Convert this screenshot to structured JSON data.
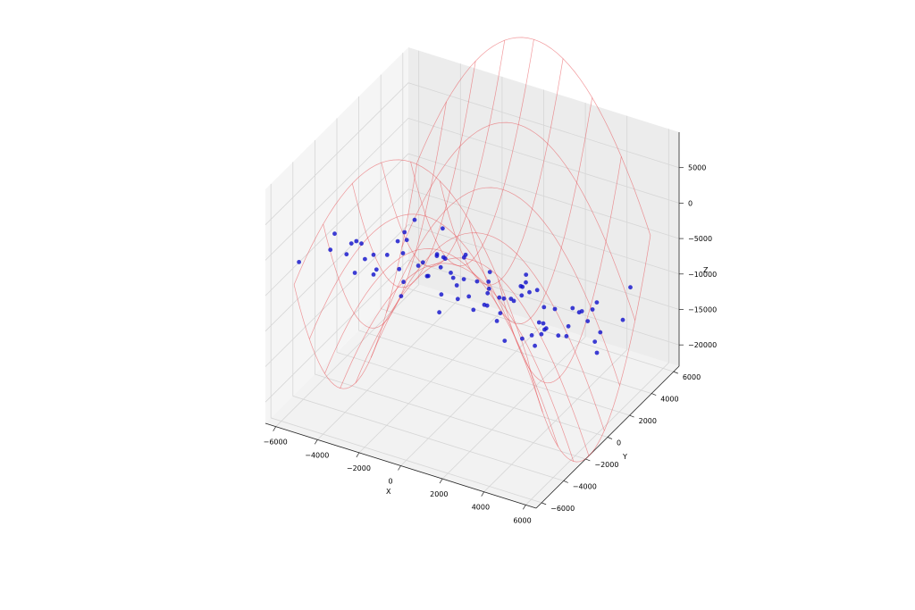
{
  "chart_data": {
    "type": "scatter",
    "title": "",
    "xlabel": "X",
    "ylabel": "Y",
    "zlabel": "Z",
    "x_ticks": [
      "−6000",
      "−4000",
      "−2000",
      "0",
      "2000",
      "4000",
      "6000"
    ],
    "y_ticks": [
      "−6000",
      "−4000",
      "−2000",
      "0",
      "2000",
      "4000",
      "6000"
    ],
    "z_ticks": [
      "−20000",
      "−15000",
      "−10000",
      "−5000",
      "0",
      "5000"
    ],
    "xlim": [
      -6500,
      6500
    ],
    "ylim": [
      -6500,
      6500
    ],
    "zlim": [
      -23000,
      10000
    ],
    "grid": true,
    "surface": {
      "kind": "wireframe",
      "color": "#e8474d",
      "x_range": [
        -5600,
        5600
      ],
      "y_range": [
        -5600,
        5600
      ],
      "steps": 9,
      "equation": "z = (y^2 - x^2) / 6000000 * 4300 - 4000"
    },
    "points": {
      "color": "#1414cc",
      "x": [
        -5520,
        -4280,
        -3580,
        -3080,
        -2310,
        -1450,
        -720,
        150,
        900,
        1820,
        2640,
        3370,
        4380,
        5120,
        -5180,
        -4560,
        -3790,
        -2680,
        -1770,
        -900,
        420,
        1370,
        2260,
        3180,
        4160,
        4870,
        -4890,
        -3450,
        -2210,
        -1010,
        180,
        1160,
        2480,
        3590,
        4510,
        -5020,
        -3990,
        -2960,
        -1760,
        -420,
        820,
        2030,
        3070,
        4100,
        5350,
        -4620,
        -3150,
        -1910,
        -610,
        620,
        1780,
        2970,
        3960,
        4830,
        -5330,
        -4380,
        -3250,
        -1850,
        -760,
        480,
        1420,
        2730,
        3880,
        5010,
        -4220,
        -2990,
        -1610,
        -280,
        1070,
        2280,
        3340,
        4690,
        -3640,
        -2470,
        -1130,
        360,
        1610,
        2920,
        4210,
        5260,
        -2700,
        -1320,
        30,
        1220,
        2540,
        3760,
        4930
      ],
      "y": [
        -5300,
        -4800,
        -3900,
        -5600,
        -4600,
        -3900,
        -5100,
        -3500,
        -4700,
        -5400,
        -3600,
        -4900,
        -3400,
        -4500,
        -2700,
        -1900,
        -2900,
        -1700,
        -2600,
        -1500,
        -2200,
        -2900,
        -1400,
        -2500,
        -1800,
        -2700,
        -500,
        -1200,
        -300,
        -900,
        100,
        -600,
        -200,
        -1100,
        200,
        800,
        1400,
        700,
        1600,
        900,
        1400,
        700,
        1700,
        800,
        1200,
        2500,
        3100,
        2300,
        3400,
        2600,
        3200,
        2200,
        3000,
        2500,
        3800,
        4300,
        3700,
        4600,
        3900,
        4500,
        3600,
        4800,
        3800,
        4200,
        5300,
        4900,
        5600,
        5100,
        4700,
        5400,
        5000,
        5500,
        -4100,
        -4300,
        -3100,
        -3300,
        -3800,
        -4000,
        -3100,
        -3500,
        1000,
        1900,
        1300,
        2100,
        1100,
        2000,
        1600
      ],
      "z": [
        -1200,
        900,
        -3100,
        2600,
        1700,
        -600,
        -1900,
        2100,
        -3300,
        4200,
        -700,
        3600,
        3200,
        3100,
        -900,
        -2600,
        -700,
        -1200,
        1200,
        -1700,
        -3800,
        -3400,
        -5200,
        -2700,
        -6200,
        -2000,
        -7600,
        -4600,
        -5900,
        -8400,
        -7000,
        -3700,
        -6400,
        -11100,
        -9500,
        -11200,
        -5900,
        -8600,
        -10600,
        -12800,
        -16800,
        -14300,
        -10700,
        -12200,
        -14000,
        -15200,
        -12700,
        -14800,
        -18400,
        -13200,
        -17100,
        -15300,
        -13600,
        -13600,
        -13800,
        -16900,
        -12500,
        -19100,
        -16000,
        -21100,
        -18700,
        -16100,
        -17800,
        -14300,
        -11600,
        -17000,
        -21600,
        -15900,
        -19900,
        -17600,
        -14600,
        -12000,
        1300,
        -1700,
        5400,
        1800,
        3700,
        800,
        1500,
        -2700,
        -10300,
        -7400,
        -12400,
        -9800,
        -7600,
        -10400,
        -8900
      ]
    }
  }
}
